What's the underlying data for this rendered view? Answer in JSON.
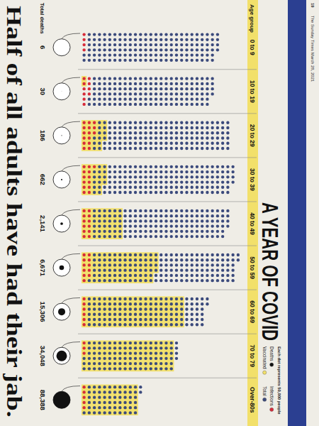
{
  "chart_data": {
    "type": "dot_matrix",
    "title": "A YEAR OF COVID",
    "subtitle": "Each dot represents 50,000 people",
    "dot_value": 50000,
    "publication": "The Sunday Times March 28, 2021",
    "page": 19,
    "x_label": "Age group",
    "deaths_label": "Total deaths",
    "headline": "Half of all adults have had their jab.",
    "legend": "top-right",
    "categories": [
      "0 to 9",
      "10 to 19",
      "20 to 29",
      "30 to 39",
      "40 to 49",
      "50 to 59",
      "60 to 69",
      "70 to 79",
      "Over-80s"
    ],
    "series": [
      {
        "name": "Deaths",
        "color": "#111111",
        "values": [
          6,
          30,
          186,
          662,
          2141,
          6671,
          15306,
          34048,
          88388
        ],
        "value_labels": [
          "6",
          "30",
          "186",
          "662",
          "2,141",
          "6,671",
          "15,306",
          "34,048",
          "88,388"
        ]
      },
      {
        "name": "Infections",
        "color": "#d62b3a",
        "values": [
          200000,
          500000,
          750000,
          650000,
          600000,
          550000,
          300000,
          150000,
          250000
        ]
      },
      {
        "name": "Vaccinated",
        "color": "#f2e06a",
        "values": [
          0,
          100000,
          1400000,
          1400000,
          2400000,
          4400000,
          6000000,
          5400000,
          3300000
        ]
      },
      {
        "name": "Total",
        "color": "#3b4a7c",
        "values": [
          8000000,
          7700000,
          8700000,
          8900000,
          8600000,
          9100000,
          7300000,
          5600000,
          3400000
        ]
      }
    ]
  }
}
